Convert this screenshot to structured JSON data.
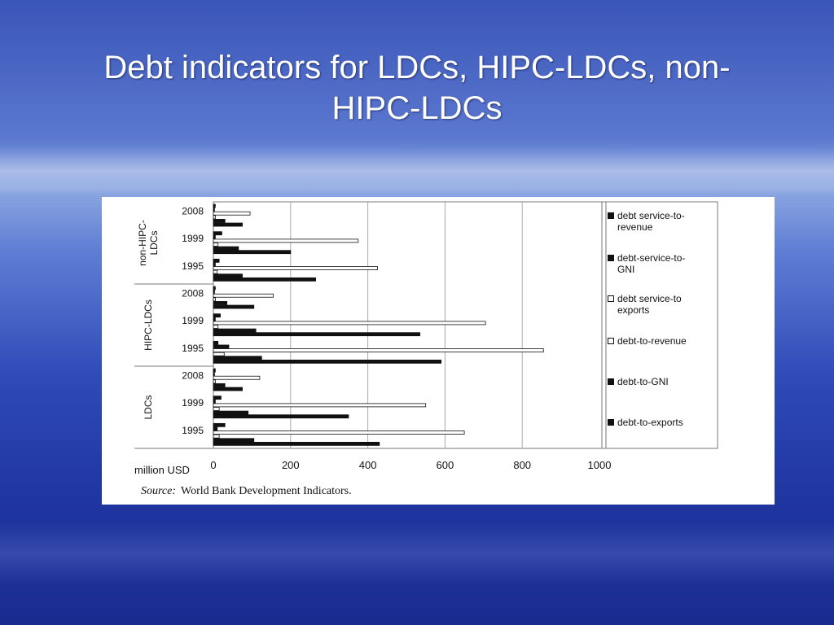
{
  "slide": {
    "title_line1": "Debt indicators for LDCs, HIPC-LDCs, non-",
    "title_line2": "HIPC-LDCs"
  },
  "source": {
    "label": "Source:",
    "text": "World Bank Development Indicators."
  },
  "chart_data": {
    "type": "bar",
    "orientation": "horizontal",
    "xlabel": "million USD",
    "xlim": [
      0,
      1000
    ],
    "xticks": [
      0,
      200,
      400,
      600,
      800,
      1000
    ],
    "grid": true,
    "legend_position": "right",
    "groups": [
      {
        "name": "non-HIPC-LDCs",
        "name_lines": [
          "non-HIPC-",
          "LDCs"
        ],
        "years": [
          "2008",
          "1999",
          "1995"
        ]
      },
      {
        "name": "HIPC-LDCs",
        "name_lines": [
          "HIPC-LDCs"
        ],
        "years": [
          "2008",
          "1999",
          "1995"
        ]
      },
      {
        "name": "LDCs",
        "name_lines": [
          "LDCs"
        ],
        "years": [
          "2008",
          "1999",
          "1995"
        ]
      }
    ],
    "series": [
      {
        "name": "debt service-to-revenue",
        "name_lines": [
          "debt service-to-",
          "revenue"
        ],
        "fill": "black",
        "values": [
          5,
          22,
          15,
          5,
          18,
          12,
          5,
          20,
          30
        ]
      },
      {
        "name": "debt-service-to-GNI",
        "name_lines": [
          "debt-service-to-",
          "GNI"
        ],
        "fill": "black",
        "values": [
          3,
          5,
          5,
          3,
          5,
          40,
          3,
          5,
          10
        ]
      },
      {
        "name": "debt service-to exports",
        "name_lines": [
          "debt service-to",
          "exports"
        ],
        "fill": "white",
        "values": [
          95,
          375,
          425,
          155,
          705,
          855,
          120,
          550,
          650
        ]
      },
      {
        "name": "debt-to-revenue",
        "name_lines": [
          "debt-to-revenue"
        ],
        "fill": "white",
        "values": [
          5,
          12,
          10,
          5,
          12,
          28,
          5,
          15,
          15
        ]
      },
      {
        "name": "debt-to-GNI",
        "name_lines": [
          "debt-to-GNI"
        ],
        "fill": "black",
        "values": [
          30,
          65,
          75,
          35,
          110,
          125,
          30,
          90,
          105
        ]
      },
      {
        "name": "debt-to-exports",
        "name_lines": [
          "debt-to-exports"
        ],
        "fill": "black",
        "values": [
          75,
          200,
          265,
          105,
          535,
          590,
          75,
          350,
          430
        ]
      }
    ]
  }
}
